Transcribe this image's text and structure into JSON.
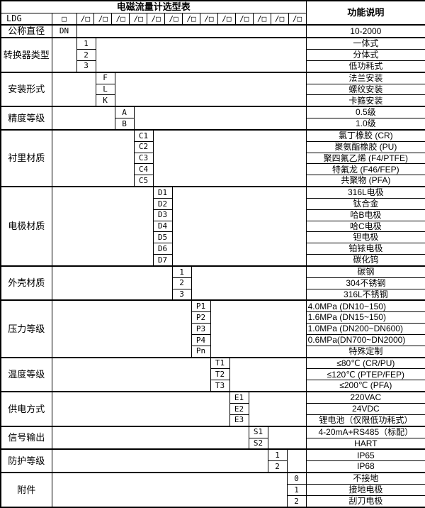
{
  "table": {
    "title": "电磁流量计选型表",
    "function_header": "功能说明",
    "model_code": "LDG",
    "first_slot": "□",
    "slot": "/□",
    "slot_count": 13,
    "diameter_row": {
      "category": "公称直径",
      "code": "DN",
      "desc": "10-2000"
    },
    "groups": [
      {
        "category": "转换器类型",
        "items": [
          {
            "code": "1",
            "desc": "一体式"
          },
          {
            "code": "2",
            "desc": "分体式"
          },
          {
            "code": "3",
            "desc": "低功耗式"
          }
        ]
      },
      {
        "category": "安装形式",
        "items": [
          {
            "code": "F",
            "desc": "法兰安装"
          },
          {
            "code": "L",
            "desc": "螺纹安装"
          },
          {
            "code": "K",
            "desc": "卡箍安装"
          }
        ]
      },
      {
        "category": "精度等级",
        "items": [
          {
            "code": "A",
            "desc": "0.5级"
          },
          {
            "code": "B",
            "desc": "1.0级"
          }
        ]
      },
      {
        "category": "衬里材质",
        "items": [
          {
            "code": "C1",
            "desc": "氯丁橡胶 (CR)"
          },
          {
            "code": "C2",
            "desc": "聚氨酯橡胶 (PU)"
          },
          {
            "code": "C3",
            "desc": "聚四氟乙烯 (F4/PTFE)"
          },
          {
            "code": "C4",
            "desc": "特氟龙 (F46/FEP)"
          },
          {
            "code": "C5",
            "desc": "共聚物 (PFA)"
          }
        ]
      },
      {
        "category": "电极材质",
        "items": [
          {
            "code": "D1",
            "desc": "316L电极"
          },
          {
            "code": "D2",
            "desc": "钛合金"
          },
          {
            "code": "D3",
            "desc": "哈B电极"
          },
          {
            "code": "D4",
            "desc": "哈C电极"
          },
          {
            "code": "D5",
            "desc": "钽电极"
          },
          {
            "code": "D6",
            "desc": "铂铱电极"
          },
          {
            "code": "D7",
            "desc": "碳化钨"
          }
        ]
      },
      {
        "category": "外壳材质",
        "items": [
          {
            "code": "1",
            "desc": "碳钢"
          },
          {
            "code": "2",
            "desc": "304不锈钢"
          },
          {
            "code": "3",
            "desc": "316L不锈钢"
          }
        ]
      },
      {
        "category": "压力等级",
        "items": [
          {
            "code": "P1",
            "desc": "4.0MPa (DN10~150)",
            "align": "left"
          },
          {
            "code": "P2",
            "desc": "1.6MPa (DN15~150)",
            "align": "left"
          },
          {
            "code": "P3",
            "desc": "1.0MPa (DN200~DN600)",
            "align": "left"
          },
          {
            "code": "P4",
            "desc": "0.6MPa(DN700~DN2000)",
            "align": "left"
          },
          {
            "code": "Pn",
            "desc": "特殊定制"
          }
        ]
      },
      {
        "category": "温度等级",
        "items": [
          {
            "code": "T1",
            "desc": "≤80℃ (CR/PU)"
          },
          {
            "code": "T2",
            "desc": "≤120℃ (PTEP/FEP)"
          },
          {
            "code": "T3",
            "desc": "≤200℃ (PFA)"
          }
        ]
      },
      {
        "category": "供电方式",
        "items": [
          {
            "code": "E1",
            "desc": "220VAC"
          },
          {
            "code": "E2",
            "desc": "24VDC"
          },
          {
            "code": "E3",
            "desc": "锂电池（仅限低功耗式）"
          }
        ]
      },
      {
        "category": "信号输出",
        "items": [
          {
            "code": "S1",
            "desc": "4-20mA+RS485（标配）"
          },
          {
            "code": "S2",
            "desc": "HART"
          }
        ]
      },
      {
        "category": "防护等级",
        "items": [
          {
            "code": "1",
            "desc": "IP65"
          },
          {
            "code": "2",
            "desc": "IP68"
          }
        ]
      },
      {
        "category": "附件",
        "items": [
          {
            "code": "0",
            "desc": "不接地"
          },
          {
            "code": "1",
            "desc": "接地电极"
          },
          {
            "code": "2",
            "desc": "刮刀电极"
          }
        ]
      }
    ]
  }
}
